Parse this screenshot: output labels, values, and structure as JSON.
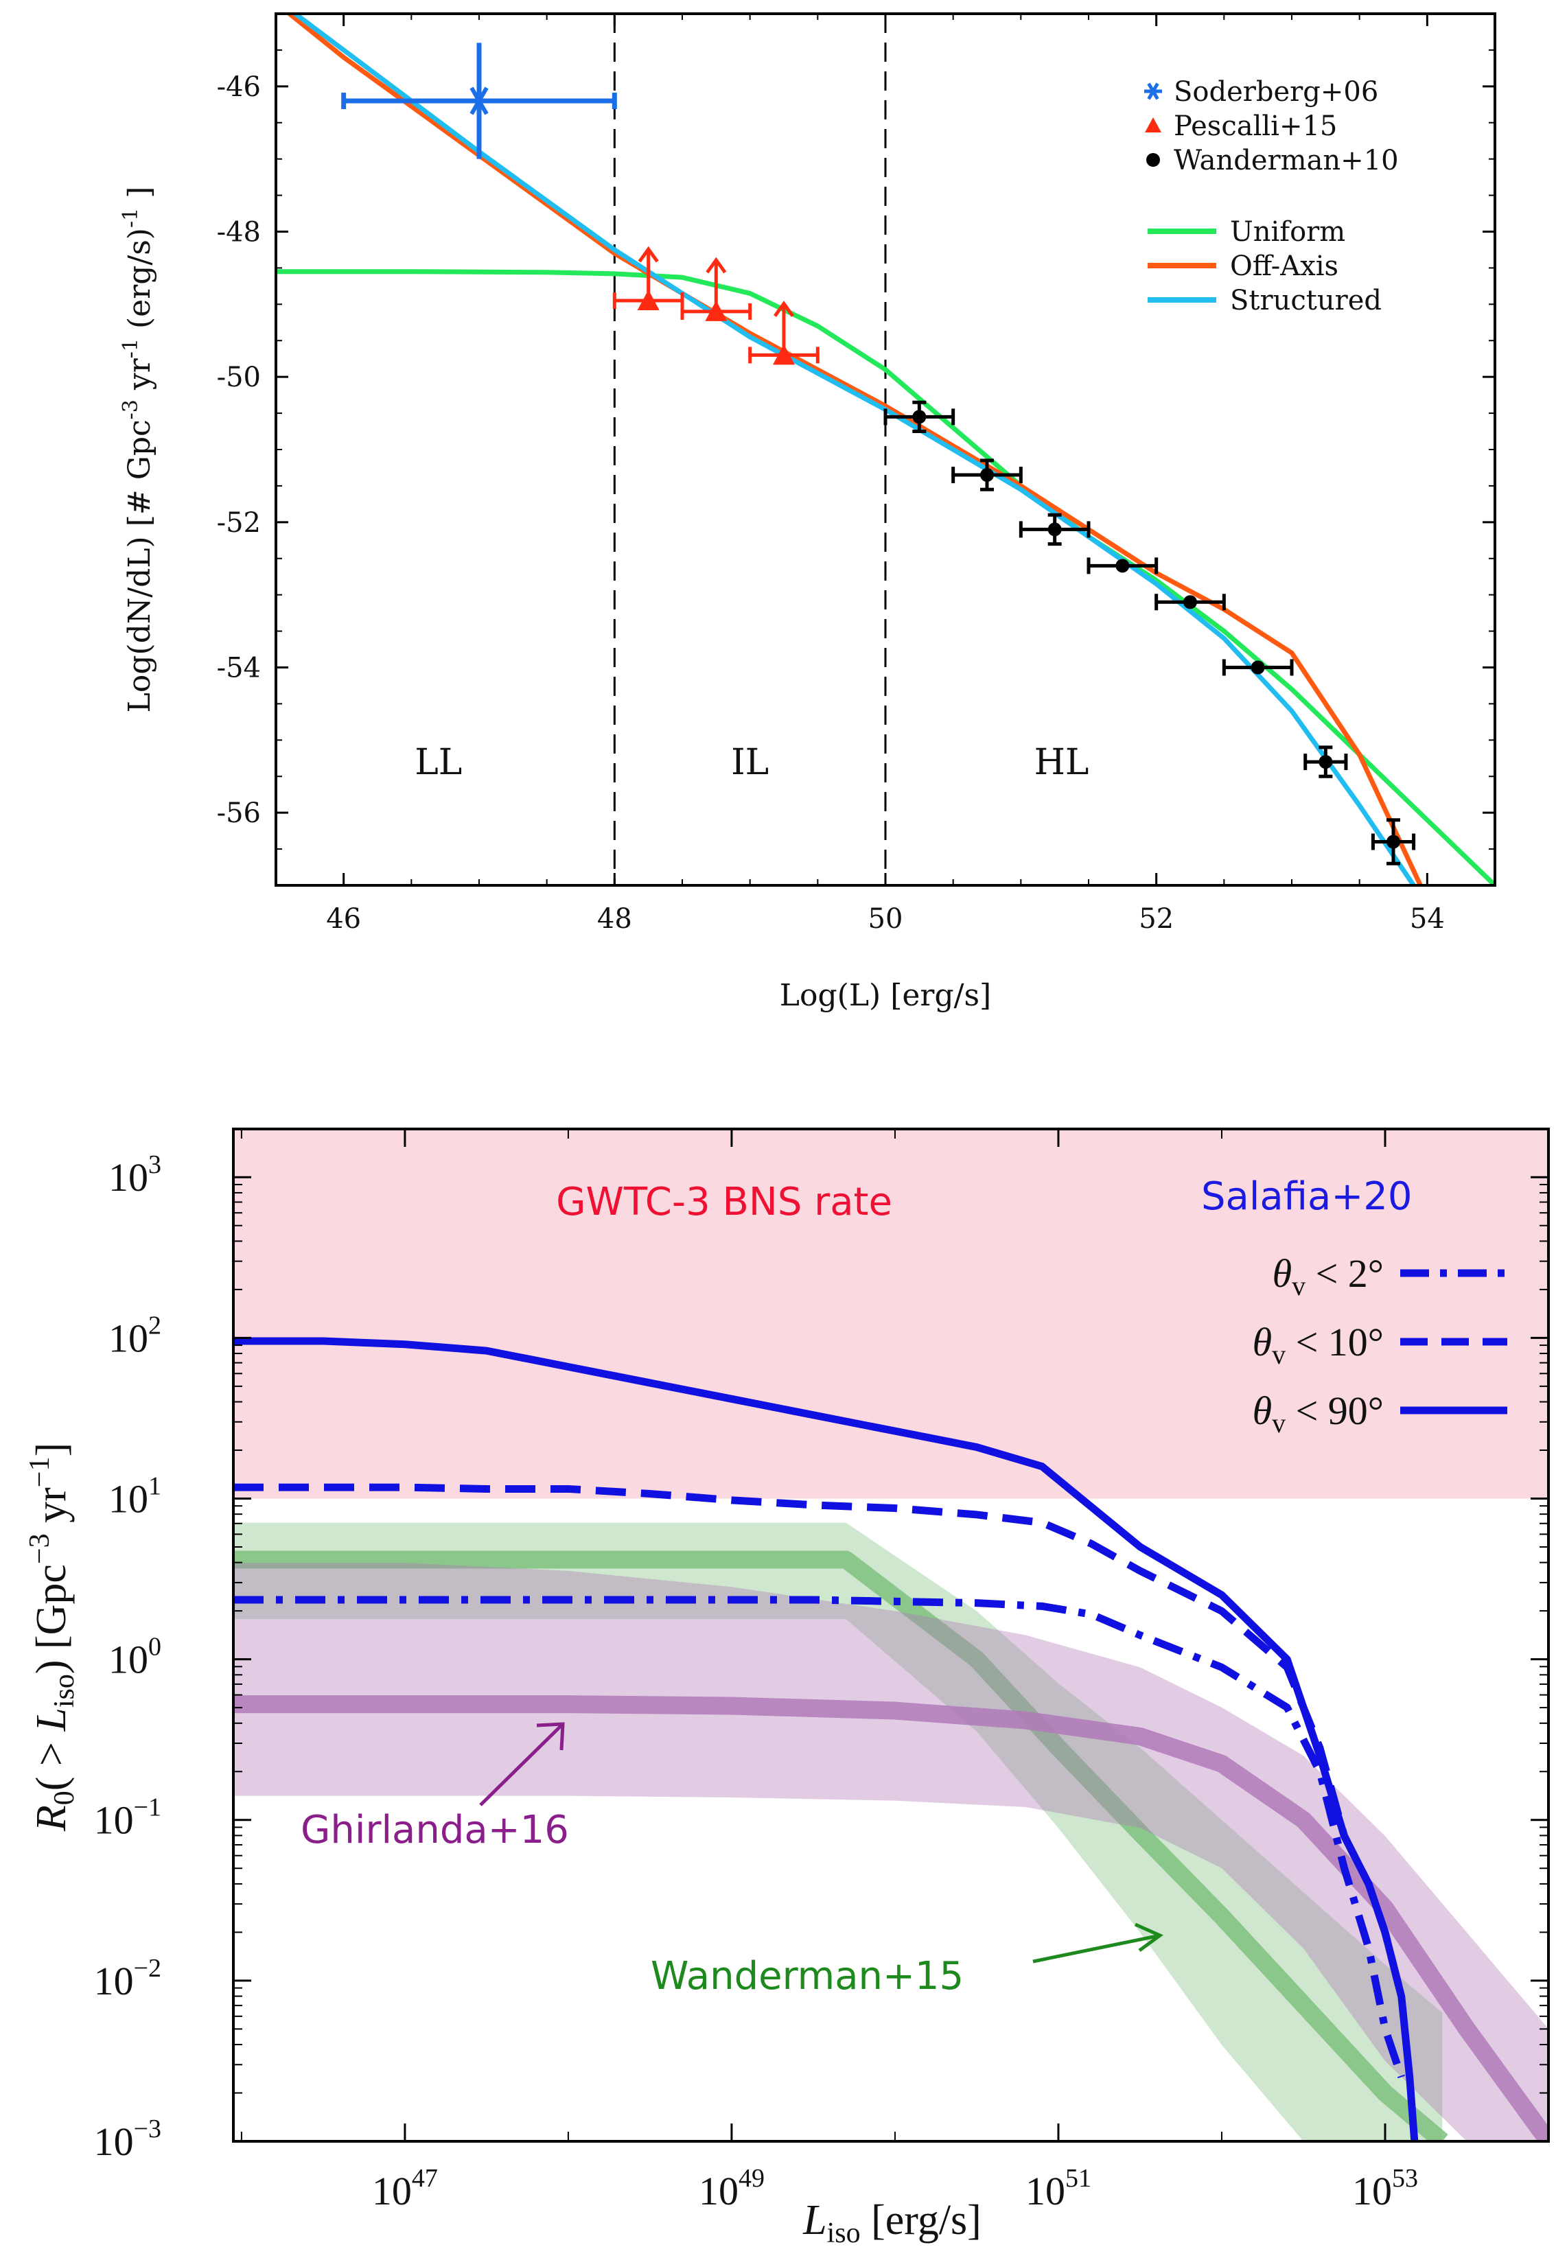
{
  "chart_data": [
    {
      "type": "line",
      "title": "",
      "xlabel": "Log(L) [erg/s]",
      "ylabel": "Log(dN/dL) [# Gpc-3 yr-1 (erg/s)-1]",
      "ylabel_parts": {
        "a": "Log(dN/dL) [# Gpc",
        "b": "-3",
        "c": " yr",
        "d": "-1",
        "e": " (erg/s)",
        "f": "-1",
        "g": " ]"
      },
      "xlim": [
        45.5,
        54.5
      ],
      "ylim": [
        -57,
        -45
      ],
      "xticks": [
        46,
        48,
        50,
        52,
        54
      ],
      "xtick_labels": [
        "46",
        "48",
        "50",
        "52",
        "54"
      ],
      "yticks": [
        -56,
        -54,
        -52,
        -50,
        -48,
        -46
      ],
      "ytick_labels": [
        "-56",
        "-54",
        "-52",
        "-50",
        "-48",
        "-46"
      ],
      "vlines": [
        48,
        50
      ],
      "regions": [
        {
          "label": "LL",
          "x": 46.7
        },
        {
          "label": "IL",
          "x": 49.0
        },
        {
          "label": "HL",
          "x": 51.3
        }
      ],
      "legend_markers": [
        {
          "name": "Soderberg+06",
          "color": "#1a6fe8",
          "marker": "asterisk"
        },
        {
          "name": "Pescalli+15",
          "color": "#ff2a12",
          "marker": "triangle"
        },
        {
          "name": "Wanderman+10",
          "color": "#000000",
          "marker": "circle"
        }
      ],
      "series": [
        {
          "name": "Uniform",
          "color": "#22e85a",
          "x": [
            45.5,
            46.5,
            47.5,
            48.0,
            48.5,
            49.0,
            49.5,
            50.0,
            50.5,
            51.0,
            51.5,
            52.0,
            52.5,
            53.0,
            53.5,
            54.0,
            54.5
          ],
          "y": [
            -48.55,
            -48.55,
            -48.56,
            -48.58,
            -48.63,
            -48.85,
            -49.3,
            -49.9,
            -50.7,
            -51.5,
            -52.2,
            -52.8,
            -53.5,
            -54.3,
            -55.2,
            -56.1,
            -57.0
          ]
        },
        {
          "name": "Off-Axis",
          "color": "#ff5a12",
          "x": [
            45.5,
            46.0,
            47.0,
            48.0,
            49.0,
            50.0,
            51.0,
            52.0,
            52.5,
            53.0,
            53.5,
            53.7,
            53.95
          ],
          "y": [
            -44.85,
            -45.6,
            -46.95,
            -48.3,
            -49.4,
            -50.4,
            -51.5,
            -52.7,
            -53.2,
            -53.8,
            -55.2,
            -56.0,
            -57.0
          ]
        },
        {
          "name": "Structured",
          "color": "#22bdf0",
          "x": [
            45.5,
            46.0,
            47.0,
            48.0,
            49.0,
            50.0,
            51.0,
            52.0,
            52.5,
            53.0,
            53.5,
            53.9
          ],
          "y": [
            -44.8,
            -45.5,
            -46.9,
            -48.25,
            -49.45,
            -50.45,
            -51.55,
            -52.85,
            -53.6,
            -54.6,
            -55.9,
            -57.0
          ]
        }
      ],
      "points": [
        {
          "set": "Soderberg+06",
          "x": 47.0,
          "y": -46.2,
          "xerr": [
            1.0,
            1.0
          ],
          "yerr": [
            0.8,
            0.8
          ]
        },
        {
          "set": "Pescalli+15",
          "x": 48.25,
          "y": -48.95,
          "xerr": [
            0.25,
            0.25
          ],
          "lower_limit": true
        },
        {
          "set": "Pescalli+15",
          "x": 48.75,
          "y": -49.1,
          "xerr": [
            0.25,
            0.25
          ],
          "lower_limit": true
        },
        {
          "set": "Pescalli+15",
          "x": 49.25,
          "y": -49.7,
          "xerr": [
            0.25,
            0.25
          ],
          "lower_limit": true
        },
        {
          "set": "Wanderman+10",
          "x": 50.25,
          "y": -50.55,
          "xerr": [
            0.25,
            0.25
          ],
          "yerr": [
            0.2,
            0.2
          ]
        },
        {
          "set": "Wanderman+10",
          "x": 50.75,
          "y": -51.35,
          "xerr": [
            0.25,
            0.25
          ],
          "yerr": [
            0.2,
            0.2
          ]
        },
        {
          "set": "Wanderman+10",
          "x": 51.25,
          "y": -52.1,
          "xerr": [
            0.25,
            0.25
          ],
          "yerr": [
            0.2,
            0.2
          ]
        },
        {
          "set": "Wanderman+10",
          "x": 51.75,
          "y": -52.6,
          "xerr": [
            0.25,
            0.25
          ],
          "yerr": [
            0.0,
            0.0
          ]
        },
        {
          "set": "Wanderman+10",
          "x": 52.25,
          "y": -53.1,
          "xerr": [
            0.25,
            0.25
          ],
          "yerr": [
            0.0,
            0.0
          ]
        },
        {
          "set": "Wanderman+10",
          "x": 52.75,
          "y": -54.0,
          "xerr": [
            0.25,
            0.25
          ],
          "yerr": [
            0.0,
            0.0
          ]
        },
        {
          "set": "Wanderman+10",
          "x": 53.25,
          "y": -55.3,
          "xerr": [
            0.15,
            0.15
          ],
          "yerr": [
            0.2,
            0.2
          ]
        },
        {
          "set": "Wanderman+10",
          "x": 53.75,
          "y": -56.4,
          "xerr": [
            0.15,
            0.15
          ],
          "yerr": [
            0.3,
            0.3
          ]
        }
      ]
    },
    {
      "type": "line",
      "title": "",
      "xlabel": {
        "main": "L",
        "sub": "iso",
        "rest": " [erg/s]"
      },
      "ylabel": {
        "r": "R",
        "r_sub": "0",
        "open": "( > ",
        "l": "L",
        "l_sub": "iso",
        "close": ") [Gpc",
        "g_sup": "−3",
        "yr": " yr",
        "yr_sup": "−1",
        "end": "]"
      },
      "xscale": "log",
      "yscale": "log",
      "xlim_log10": [
        45.95,
        54.0
      ],
      "ylim_log10": [
        -3.0,
        3.3
      ],
      "xticks_log10": [
        47,
        49,
        51,
        53
      ],
      "xtick_labels": [
        {
          "b": "10",
          "e": "47"
        },
        {
          "b": "10",
          "e": "49"
        },
        {
          "b": "10",
          "e": "51"
        },
        {
          "b": "10",
          "e": "53"
        }
      ],
      "yticks_log10": [
        -3,
        -2,
        -1,
        0,
        1,
        2,
        3
      ],
      "ytick_labels": [
        {
          "b": "10",
          "e": "−3"
        },
        {
          "b": "10",
          "e": "−2"
        },
        {
          "b": "10",
          "e": "−1"
        },
        {
          "b": "10",
          "e": "0"
        },
        {
          "b": "10",
          "e": "1"
        },
        {
          "b": "10",
          "e": "2"
        },
        {
          "b": "10",
          "e": "3"
        }
      ],
      "bands": [
        {
          "name": "GWTC-3 BNS rate",
          "color": "#fbd9e1",
          "y_range": [
            10,
            2000
          ]
        }
      ],
      "band_label": "GWTC-3 BNS rate",
      "legend_title": "Salafia+20",
      "legend": [
        {
          "name": "θv < 2°",
          "sym": "θ",
          "sub": "v",
          "text": " < 2°",
          "style": "dashdot"
        },
        {
          "name": "θv < 10°",
          "sym": "θ",
          "sub": "v",
          "text": " < 10°",
          "style": "dashed"
        },
        {
          "name": "θv < 90°",
          "sym": "θ",
          "sub": "v",
          "text": " < 90°",
          "style": "solid"
        }
      ],
      "annotations": [
        {
          "text": "Ghirlanda+16",
          "color": "#8a1e8a"
        },
        {
          "text": "Wanderman+15",
          "color": "#1e8a1e"
        }
      ],
      "series": [
        {
          "name": "θv < 90°",
          "color": "#1010e0",
          "style": "solid",
          "x_log10": [
            45.95,
            46.5,
            47.0,
            47.5,
            48.0,
            48.5,
            49.0,
            49.5,
            50.0,
            50.5,
            50.9,
            51.2,
            51.5,
            52.0,
            52.4,
            52.6,
            52.75,
            52.9,
            53.0,
            53.1,
            53.15,
            53.18
          ],
          "y_log10": [
            1.98,
            1.98,
            1.96,
            1.92,
            1.82,
            1.72,
            1.62,
            1.52,
            1.42,
            1.32,
            1.2,
            0.95,
            0.7,
            0.4,
            0.0,
            -0.6,
            -1.1,
            -1.4,
            -1.7,
            -2.1,
            -2.6,
            -3.0
          ]
        },
        {
          "name": "θv < 10°",
          "color": "#1010e0",
          "style": "dashed",
          "x_log10": [
            45.95,
            46.5,
            47.0,
            47.5,
            48.0,
            48.5,
            49.0,
            49.5,
            50.0,
            50.5,
            50.9,
            51.2,
            51.5,
            52.0,
            52.4,
            52.6,
            52.75,
            52.9,
            53.0,
            53.1
          ],
          "y_log10": [
            1.07,
            1.07,
            1.07,
            1.06,
            1.06,
            1.03,
            0.99,
            0.96,
            0.94,
            0.9,
            0.85,
            0.72,
            0.55,
            0.3,
            -0.05,
            -0.55,
            -1.1,
            -1.4,
            -1.7,
            -2.1
          ]
        },
        {
          "name": "θv < 2°",
          "color": "#1010e0",
          "style": "dashdot",
          "x_log10": [
            45.95,
            46.5,
            47.0,
            47.5,
            48.0,
            48.5,
            49.0,
            49.5,
            50.0,
            50.5,
            50.9,
            51.2,
            51.5,
            52.0,
            52.4,
            52.6,
            52.75,
            52.9,
            53.0,
            53.1
          ],
          "y_log10": [
            0.37,
            0.37,
            0.37,
            0.37,
            0.37,
            0.37,
            0.37,
            0.37,
            0.36,
            0.35,
            0.33,
            0.28,
            0.15,
            -0.05,
            -0.3,
            -0.7,
            -1.3,
            -1.8,
            -2.3,
            -2.6
          ]
        },
        {
          "name": "Wanderman+15",
          "color": "#7fbf7f",
          "style": "band",
          "x_log10": [
            45.95,
            49.7,
            50.5,
            51.0,
            51.5,
            52.0,
            52.5,
            53.0,
            53.35
          ],
          "y_log10": [
            0.62,
            0.62,
            0.0,
            -0.55,
            -1.08,
            -1.6,
            -2.15,
            -2.7,
            -3.0
          ],
          "upper_log10": [
            0.85,
            0.85,
            0.3,
            -0.15,
            -0.55,
            -1.0,
            -1.45,
            -1.9,
            -2.2
          ],
          "lower_log10": [
            0.25,
            0.25,
            -0.45,
            -1.05,
            -1.7,
            -2.4,
            -3.0,
            -3.0,
            -3.0
          ]
        },
        {
          "name": "Ghirlanda+16",
          "color": "#b07ab8",
          "style": "band",
          "x_log10": [
            45.95,
            47.0,
            48.0,
            49.0,
            50.0,
            50.8,
            51.5,
            52.0,
            52.5,
            53.0,
            53.5,
            54.0
          ],
          "y_log10": [
            -0.28,
            -0.28,
            -0.28,
            -0.29,
            -0.32,
            -0.38,
            -0.48,
            -0.65,
            -1.0,
            -1.55,
            -2.3,
            -3.0
          ],
          "upper_log10": [
            0.6,
            0.6,
            0.55,
            0.45,
            0.3,
            0.15,
            -0.05,
            -0.3,
            -0.6,
            -1.1,
            -1.7,
            -2.3
          ],
          "lower_log10": [
            -0.85,
            -0.85,
            -0.85,
            -0.86,
            -0.88,
            -0.92,
            -1.05,
            -1.3,
            -1.8,
            -2.5,
            -3.0,
            -3.0
          ]
        }
      ]
    }
  ]
}
